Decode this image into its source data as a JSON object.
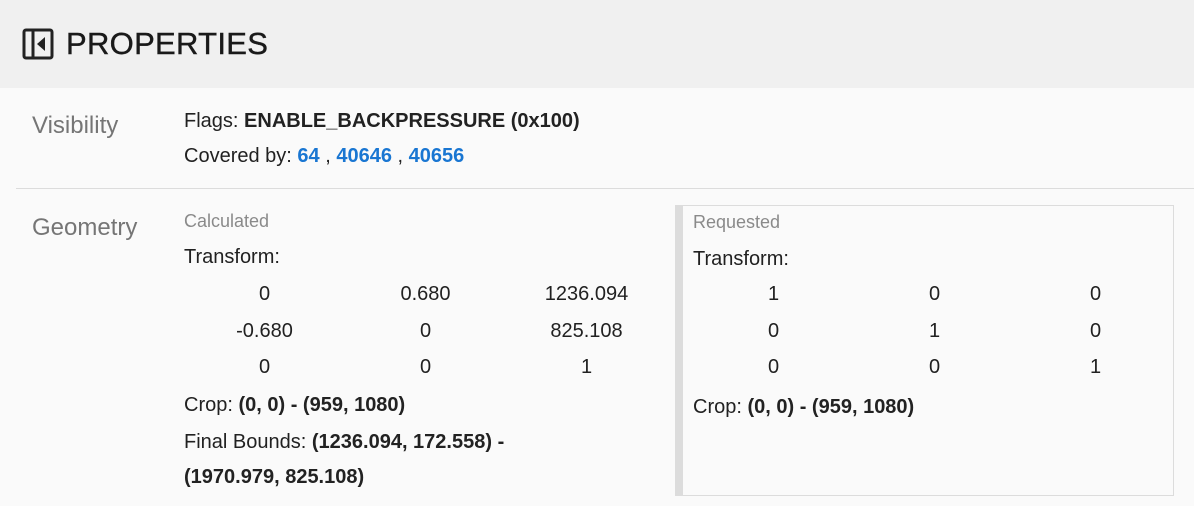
{
  "header": {
    "title": "PROPERTIES",
    "icon": "collapse-panel-icon"
  },
  "visibility": {
    "label": "Visibility",
    "flags_label": "Flags:",
    "flags_value": "ENABLE_BACKPRESSURE (0x100)",
    "covered_label": "Covered by:",
    "covered_by": [
      "64",
      "40646",
      "40656"
    ],
    "separator": ","
  },
  "geometry": {
    "label": "Geometry",
    "calculated": {
      "title": "Calculated",
      "transform_label": "Transform:",
      "matrix": [
        "0",
        "0.680",
        "1236.094",
        "-0.680",
        "0",
        "825.108",
        "0",
        "0",
        "1"
      ],
      "crop_label": "Crop:",
      "crop_value": "(0, 0) - (959, 1080)",
      "final_bounds_label": "Final Bounds:",
      "final_bounds_line1": "(1236.094, 172.558) -",
      "final_bounds_line2": "(1970.979, 825.108)"
    },
    "requested": {
      "title": "Requested",
      "transform_label": "Transform:",
      "matrix": [
        "1",
        "0",
        "0",
        "0",
        "1",
        "0",
        "0",
        "0",
        "1"
      ],
      "crop_label": "Crop:",
      "crop_value": "(0, 0) - (959, 1080)"
    }
  }
}
